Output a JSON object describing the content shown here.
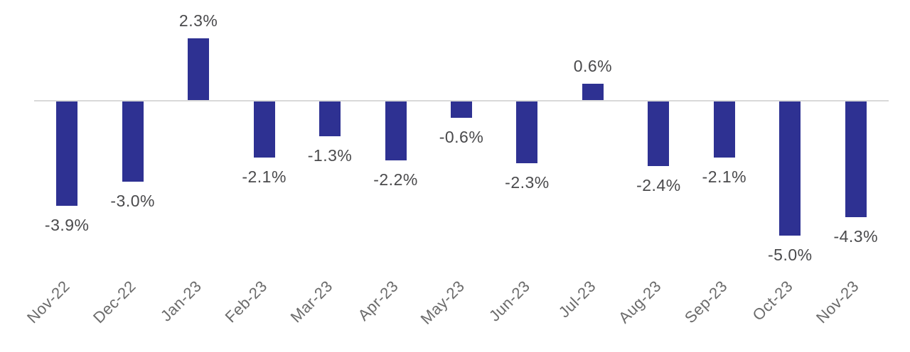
{
  "chart_data": {
    "type": "bar",
    "title": "",
    "xlabel": "",
    "ylabel": "",
    "categories": [
      "Nov-22",
      "Dec-22",
      "Jan-23",
      "Feb-23",
      "Mar-23",
      "Apr-23",
      "May-23",
      "Jun-23",
      "Jul-23",
      "Aug-23",
      "Sep-23",
      "Oct-23",
      "Nov-23"
    ],
    "values": [
      -3.9,
      -3.0,
      2.3,
      -2.1,
      -1.3,
      -2.2,
      -0.6,
      -2.3,
      0.6,
      -2.4,
      -2.1,
      -5.0,
      -4.3
    ],
    "value_labels": [
      "-3.9%",
      "-3.0%",
      "2.3%",
      "-2.1%",
      "-1.3%",
      "-2.2%",
      "-0.6%",
      "-2.3%",
      "0.6%",
      "-2.4%",
      "-2.1%",
      "-5.0%",
      "-4.3%"
    ],
    "unit": "%",
    "ylim": [
      -5.5,
      3.0
    ],
    "grid": false,
    "legend_position": "none",
    "bar_color": "#2E3192",
    "axis_line_color": "#D9D9D9",
    "value_label_color": "#4A4A4C",
    "tick_label_color": "#6B6B6B",
    "background_color": "#FFFFFF"
  }
}
